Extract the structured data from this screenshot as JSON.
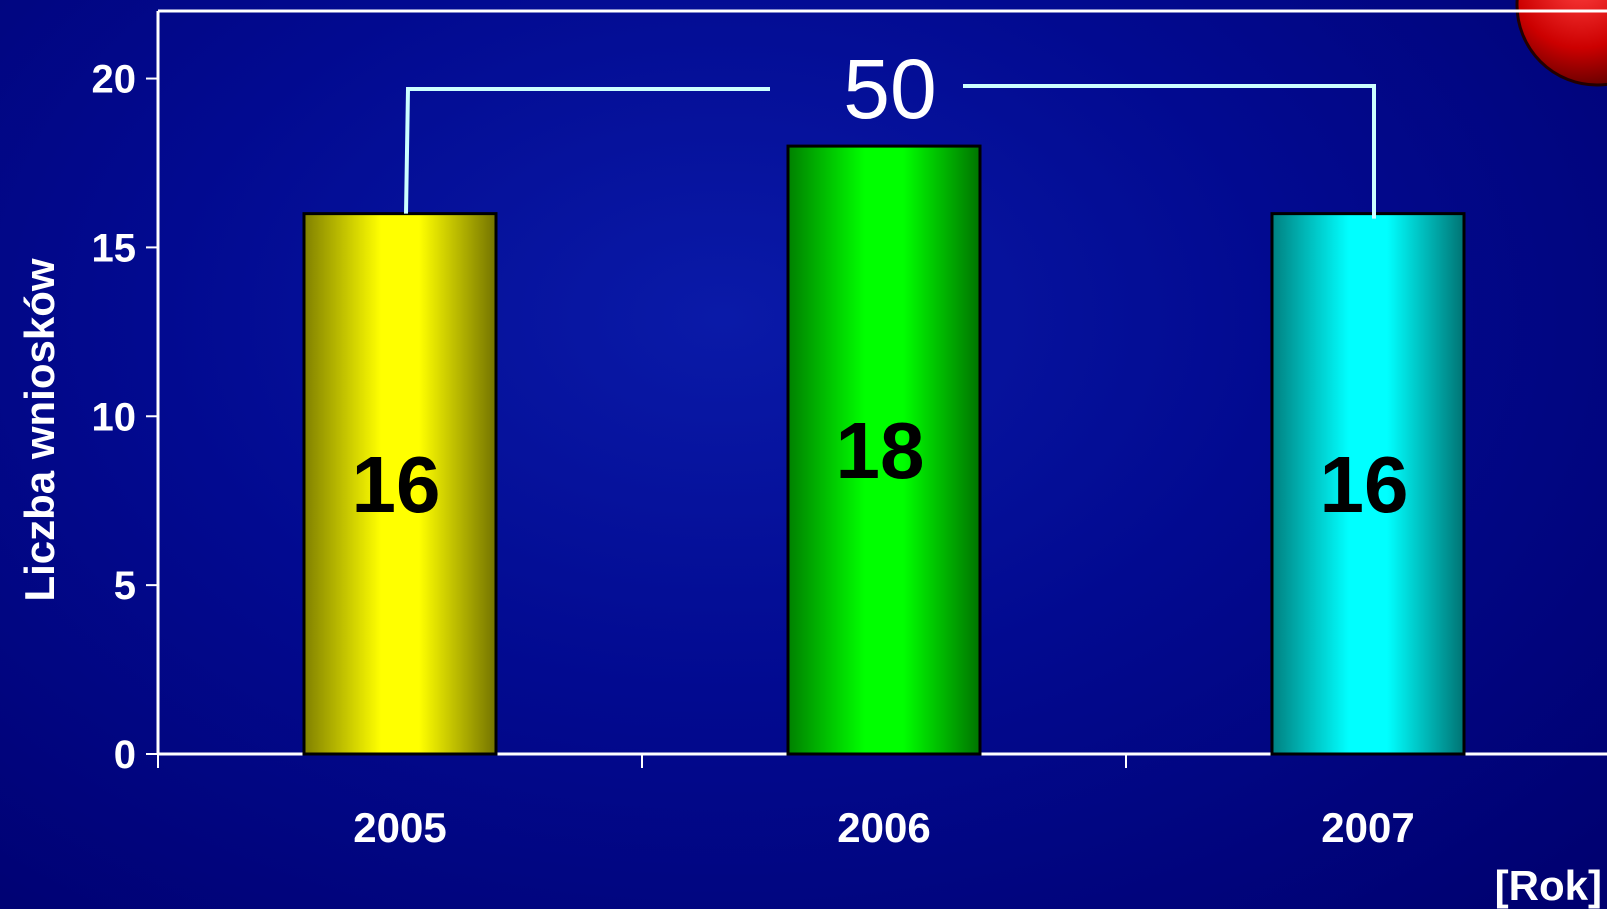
{
  "chart_data": {
    "type": "bar",
    "categories": [
      "2005",
      "2006",
      "2007"
    ],
    "values": [
      16,
      18,
      16
    ],
    "data_labels": [
      "16",
      "18",
      "16"
    ],
    "bar_colors": [
      "#ffff00",
      "#00ff00",
      "#00ffff"
    ],
    "ylabel": "Liczba wniosków",
    "xlabel": "[Rok]",
    "ylim": [
      0,
      22
    ],
    "yticks": [
      0,
      5,
      10,
      15,
      20
    ],
    "ytick_labels": [
      "0",
      "5",
      "10",
      "15",
      "20"
    ],
    "total_label": "50",
    "grid": false,
    "legend": "none"
  },
  "colors": {
    "background": "#020a90",
    "axis": "#ffffff",
    "bracket": "#ccffff",
    "decoration_circle": "#cc0000"
  }
}
